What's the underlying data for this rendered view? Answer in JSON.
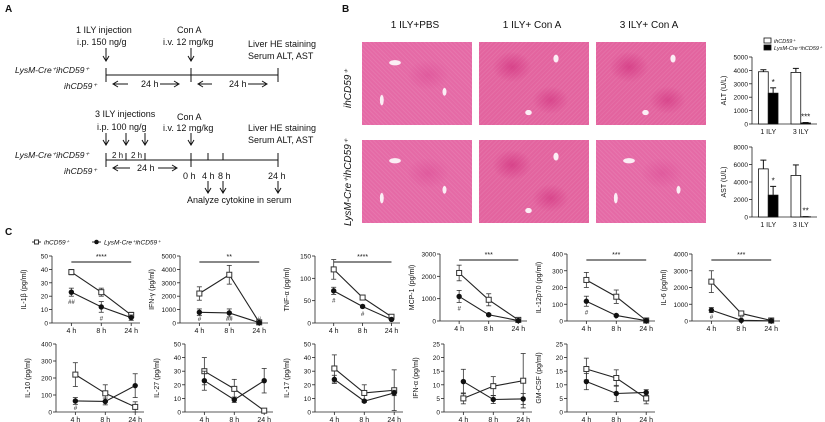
{
  "panel_labels": {
    "a": "A",
    "b": "B",
    "c": "C"
  },
  "timeline": {
    "strain_ko": "LysM-Cre⁺ihCD59⁺",
    "strain_wt": "ihCD59⁺",
    "t1": {
      "inj_title": "1 ILY injection",
      "inj_dose": "i.p.  150 ng/g",
      "cona_title": "Con A",
      "cona_dose": "i.v. 12 mg/kg",
      "end_1": "Liver HE staining",
      "end_2": "Serum ALT, AST",
      "int_1": "24 h",
      "int_2": "24 h"
    },
    "t2": {
      "inj_title": "3 ILY injections",
      "inj_dose": "i.p.  100 ng/g",
      "cona_title": "Con A",
      "cona_dose": "i.v. 12 mg/kg",
      "end_1": "Liver HE staining",
      "end_2": "Serum ALT, AST",
      "gap_1": "2 h",
      "gap_2": "2 h",
      "int_1": "24 h",
      "t0": "0 h",
      "t4": "4 h",
      "t8": "8 h",
      "t24": "24 h",
      "analyze": "Analyze cytokine in serum"
    }
  },
  "histology": {
    "columns": [
      "1 ILY+PBS",
      "1 ILY+ Con A",
      "3 ILY+ Con A"
    ],
    "rows": [
      "ihCD59⁺",
      "LysM-Cre⁺ihCD59⁺"
    ]
  },
  "colors": {
    "wt": "#ffffff",
    "ko": "#000000",
    "tissue": "#e56aa6"
  },
  "chart_data": [
    {
      "type": "bar",
      "id": "alt",
      "ylabel": "ALT (U/L)",
      "ylim": [
        0,
        5000
      ],
      "yticks": [
        0,
        1000,
        2000,
        3000,
        4000,
        5000
      ],
      "categories": [
        "1 ILY",
        "3 ILY"
      ],
      "legend": [
        "ihCD59⁺",
        "LysM-Cre⁺ihCD59⁺"
      ],
      "legend_position": "top",
      "series": [
        {
          "name": "ihCD59⁺",
          "values": [
            3900,
            3850
          ],
          "errors": [
            150,
            300
          ]
        },
        {
          "name": "LysM-Cre⁺ihCD59⁺",
          "values": [
            2300,
            80
          ],
          "errors": [
            400,
            30
          ]
        }
      ],
      "significance": [
        "*",
        "***"
      ]
    },
    {
      "type": "bar",
      "id": "ast",
      "ylabel": "AST (U/L)",
      "ylim": [
        0,
        8000
      ],
      "yticks": [
        0,
        2000,
        4000,
        6000,
        8000
      ],
      "categories": [
        "1 ILY",
        "3 ILY"
      ],
      "series": [
        {
          "name": "ihCD59⁺",
          "values": [
            5500,
            4750
          ],
          "errors": [
            1000,
            1200
          ]
        },
        {
          "name": "LysM-Cre⁺ihCD59⁺",
          "values": [
            2500,
            30
          ],
          "errors": [
            1000,
            10
          ]
        }
      ],
      "significance": [
        "*",
        "**"
      ]
    },
    {
      "type": "line",
      "id": "il1b",
      "ylabel": "IL-1β (pg/ml)",
      "x": [
        "4 h",
        "8 h",
        "24 h"
      ],
      "ylim": [
        0,
        50
      ],
      "yticks": [
        0,
        10,
        20,
        30,
        40,
        50
      ],
      "legend": [
        "ihCD59⁺",
        "LysM-Cre⁺ihCD59⁺"
      ],
      "legend_position": "top-left",
      "series": [
        {
          "name": "ihCD59⁺",
          "values": [
            38,
            23,
            6
          ],
          "errors": [
            2,
            3,
            2
          ]
        },
        {
          "name": "LysM-Cre⁺ihCD59⁺",
          "values": [
            23,
            12,
            4
          ],
          "errors": [
            3,
            4,
            2
          ]
        }
      ],
      "overall_sig": "****",
      "point_marks": [
        "##",
        "#",
        ""
      ]
    },
    {
      "type": "line",
      "id": "ifng",
      "ylabel": "IFN-γ (pg/ml)",
      "x": [
        "4 h",
        "8 h",
        "24 h"
      ],
      "ylim": [
        0,
        5000
      ],
      "yticks": [
        0,
        1000,
        2000,
        3000,
        4000,
        5000
      ],
      "series": [
        {
          "name": "ihCD59⁺",
          "values": [
            2200,
            3600,
            50
          ],
          "errors": [
            500,
            700,
            20
          ]
        },
        {
          "name": "LysM-Cre⁺ihCD59⁺",
          "values": [
            800,
            750,
            30
          ],
          "errors": [
            250,
            300,
            10
          ]
        }
      ],
      "overall_sig": "**",
      "point_marks": [
        "#",
        "##",
        "#"
      ]
    },
    {
      "type": "line",
      "id": "tnfa",
      "ylabel": "TNF-α (pg/ml)",
      "x": [
        "4 h",
        "8 h",
        "24 h"
      ],
      "ylim": [
        0,
        150
      ],
      "yticks": [
        0,
        50,
        100,
        150
      ],
      "series": [
        {
          "name": "ihCD59⁺",
          "values": [
            120,
            57,
            14
          ],
          "errors": [
            22,
            5,
            3
          ]
        },
        {
          "name": "LysM-Cre⁺ihCD59⁺",
          "values": [
            72,
            37,
            8
          ],
          "errors": [
            8,
            3,
            2
          ]
        }
      ],
      "overall_sig": "****",
      "point_marks": [
        "#",
        "#",
        ""
      ]
    },
    {
      "type": "line",
      "id": "mcp1",
      "ylabel": "MCP-1 (pg/ml)",
      "x": [
        "4 h",
        "8 h",
        "24 h"
      ],
      "ylim": [
        0,
        3000
      ],
      "yticks": [
        0,
        1000,
        2000,
        3000
      ],
      "series": [
        {
          "name": "ihCD59⁺",
          "values": [
            2150,
            950,
            50
          ],
          "errors": [
            350,
            270,
            20
          ]
        },
        {
          "name": "LysM-Cre⁺ihCD59⁺",
          "values": [
            1100,
            280,
            20
          ],
          "errors": [
            270,
            40,
            10
          ]
        }
      ],
      "overall_sig": "***",
      "point_marks": [
        "#",
        "",
        ""
      ]
    },
    {
      "type": "line",
      "id": "il12p70",
      "ylabel": "IL-12p70 (pg/ml)",
      "x": [
        "4 h",
        "8 h",
        "24 h"
      ],
      "ylim": [
        0,
        400
      ],
      "yticks": [
        0,
        100,
        200,
        300,
        400
      ],
      "series": [
        {
          "name": "ihCD59⁺",
          "values": [
            245,
            145,
            3
          ],
          "errors": [
            45,
            40,
            2
          ]
        },
        {
          "name": "LysM-Cre⁺ihCD59⁺",
          "values": [
            118,
            33,
            2
          ],
          "errors": [
            30,
            5,
            1
          ]
        }
      ],
      "overall_sig": "***",
      "point_marks": [
        "#",
        "#",
        ""
      ]
    },
    {
      "type": "line",
      "id": "il6",
      "ylabel": "IL-6 (pg/ml)",
      "x": [
        "4 h",
        "8 h",
        "24 h"
      ],
      "ylim": [
        0,
        4000
      ],
      "yticks": [
        0,
        1000,
        2000,
        3000,
        4000
      ],
      "series": [
        {
          "name": "ihCD59⁺",
          "values": [
            2350,
            450,
            30
          ],
          "errors": [
            650,
            100,
            20
          ]
        },
        {
          "name": "LysM-Cre⁺ihCD59⁺",
          "values": [
            650,
            40,
            10
          ],
          "errors": [
            150,
            20,
            5
          ]
        }
      ],
      "overall_sig": "***",
      "point_marks": [
        "#",
        "#",
        ""
      ]
    },
    {
      "type": "line",
      "id": "il10",
      "ylabel": "IL-10 (pg/ml)",
      "x": [
        "4 h",
        "8 h",
        "24 h"
      ],
      "ylim": [
        0,
        400
      ],
      "yticks": [
        0,
        100,
        200,
        300,
        400
      ],
      "series": [
        {
          "name": "ihCD59⁺",
          "values": [
            220,
            110,
            30
          ],
          "errors": [
            70,
            50,
            30
          ]
        },
        {
          "name": "LysM-Cre⁺ihCD59⁺",
          "values": [
            65,
            62,
            155
          ],
          "errors": [
            20,
            20,
            70
          ]
        }
      ],
      "overall_sig": "",
      "point_marks": [
        "#",
        "",
        ""
      ]
    },
    {
      "type": "line",
      "id": "il27",
      "ylabel": "IL-27 (pg/ml)",
      "x": [
        "4 h",
        "8 h",
        "24 h"
      ],
      "ylim": [
        0,
        50
      ],
      "yticks": [
        0,
        10,
        20,
        30,
        40,
        50
      ],
      "series": [
        {
          "name": "ihCD59⁺",
          "values": [
            30,
            17,
            1
          ],
          "errors": [
            10,
            7,
            0.5
          ]
        },
        {
          "name": "LysM-Cre⁺ihCD59⁺",
          "values": [
            23,
            9,
            23
          ],
          "errors": [
            7,
            2,
            9
          ]
        }
      ],
      "overall_sig": "",
      "point_marks": [
        "",
        "",
        ""
      ]
    },
    {
      "type": "line",
      "id": "il17",
      "ylabel": "IL-17 (pg/ml)",
      "x": [
        "4 h",
        "8 h",
        "24 h"
      ],
      "ylim": [
        0,
        50
      ],
      "yticks": [
        0,
        10,
        20,
        30,
        40,
        50
      ],
      "series": [
        {
          "name": "ihCD59⁺",
          "values": [
            32,
            14,
            16
          ],
          "errors": [
            10,
            6,
            15
          ]
        },
        {
          "name": "LysM-Cre⁺ihCD59⁺",
          "values": [
            24,
            8,
            14
          ],
          "errors": [
            3,
            1,
            2
          ]
        }
      ],
      "overall_sig": "",
      "point_marks": [
        "",
        "",
        ""
      ]
    },
    {
      "type": "line",
      "id": "ifna",
      "ylabel": "IFN-α (pg/ml)",
      "x": [
        "4 h",
        "8 h",
        "24 h"
      ],
      "ylim": [
        0,
        25
      ],
      "yticks": [
        0,
        5,
        10,
        15,
        20,
        25
      ],
      "series": [
        {
          "name": "ihCD59⁺",
          "values": [
            5,
            9.5,
            11.5
          ],
          "errors": [
            2,
            3.5,
            10
          ]
        },
        {
          "name": "LysM-Cre⁺ihCD59⁺",
          "values": [
            11.2,
            4.6,
            4.8
          ],
          "errors": [
            4.5,
            1.5,
            2
          ]
        }
      ],
      "overall_sig": "",
      "point_marks": [
        "",
        "",
        ""
      ]
    },
    {
      "type": "line",
      "id": "gmcsf",
      "ylabel": "GM-CSF (pg/ml)",
      "x": [
        "4 h",
        "8 h",
        "24 h"
      ],
      "ylim": [
        0,
        25
      ],
      "yticks": [
        0,
        5,
        10,
        15,
        20,
        25
      ],
      "series": [
        {
          "name": "ihCD59⁺",
          "values": [
            15.8,
            12.5,
            5
          ],
          "errors": [
            4,
            3,
            2
          ]
        },
        {
          "name": "LysM-Cre⁺ihCD59⁺",
          "values": [
            11.2,
            6.8,
            7.2
          ],
          "errors": [
            3,
            3,
            1
          ]
        }
      ],
      "overall_sig": "",
      "point_marks": [
        "",
        "",
        ""
      ]
    }
  ]
}
